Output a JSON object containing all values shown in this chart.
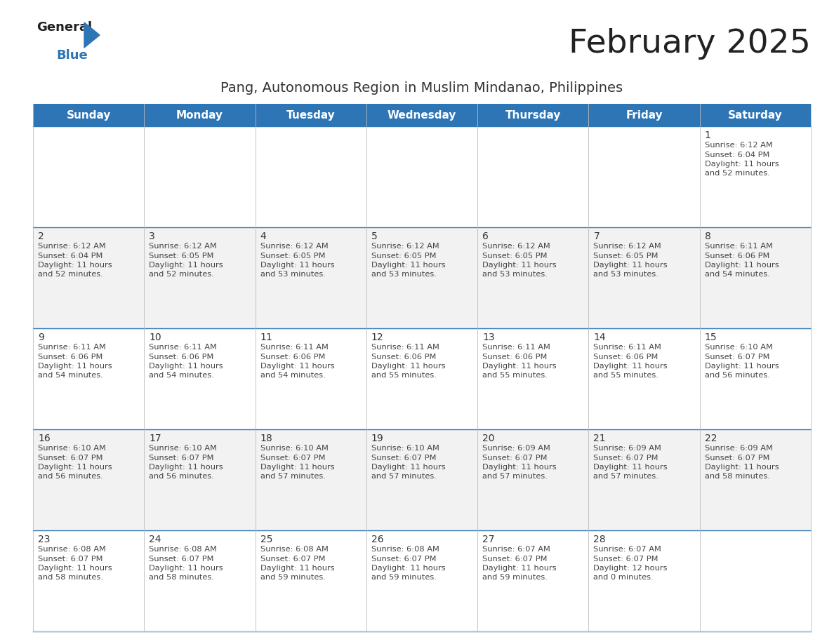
{
  "title": "February 2025",
  "subtitle": "Pang, Autonomous Region in Muslim Mindanao, Philippines",
  "header_bg_color": "#2E75B6",
  "header_text_color": "#FFFFFF",
  "weekdays": [
    "Sunday",
    "Monday",
    "Tuesday",
    "Wednesday",
    "Thursday",
    "Friday",
    "Saturday"
  ],
  "row_bg_white": "#FFFFFF",
  "row_bg_gray": "#F2F2F2",
  "cell_text_color": "#444444",
  "day_num_color": "#333333",
  "grid_line_color": "#AAAAAA",
  "row_divider_color": "#2E75B6",
  "calendar": [
    [
      {
        "day": null
      },
      {
        "day": null
      },
      {
        "day": null
      },
      {
        "day": null
      },
      {
        "day": null
      },
      {
        "day": null
      },
      {
        "day": 1,
        "sunrise": "6:12 AM",
        "sunset": "6:04 PM",
        "daylight_hours": 11,
        "daylight_minutes": 52
      }
    ],
    [
      {
        "day": 2,
        "sunrise": "6:12 AM",
        "sunset": "6:04 PM",
        "daylight_hours": 11,
        "daylight_minutes": 52
      },
      {
        "day": 3,
        "sunrise": "6:12 AM",
        "sunset": "6:05 PM",
        "daylight_hours": 11,
        "daylight_minutes": 52
      },
      {
        "day": 4,
        "sunrise": "6:12 AM",
        "sunset": "6:05 PM",
        "daylight_hours": 11,
        "daylight_minutes": 53
      },
      {
        "day": 5,
        "sunrise": "6:12 AM",
        "sunset": "6:05 PM",
        "daylight_hours": 11,
        "daylight_minutes": 53
      },
      {
        "day": 6,
        "sunrise": "6:12 AM",
        "sunset": "6:05 PM",
        "daylight_hours": 11,
        "daylight_minutes": 53
      },
      {
        "day": 7,
        "sunrise": "6:12 AM",
        "sunset": "6:05 PM",
        "daylight_hours": 11,
        "daylight_minutes": 53
      },
      {
        "day": 8,
        "sunrise": "6:11 AM",
        "sunset": "6:06 PM",
        "daylight_hours": 11,
        "daylight_minutes": 54
      }
    ],
    [
      {
        "day": 9,
        "sunrise": "6:11 AM",
        "sunset": "6:06 PM",
        "daylight_hours": 11,
        "daylight_minutes": 54
      },
      {
        "day": 10,
        "sunrise": "6:11 AM",
        "sunset": "6:06 PM",
        "daylight_hours": 11,
        "daylight_minutes": 54
      },
      {
        "day": 11,
        "sunrise": "6:11 AM",
        "sunset": "6:06 PM",
        "daylight_hours": 11,
        "daylight_minutes": 54
      },
      {
        "day": 12,
        "sunrise": "6:11 AM",
        "sunset": "6:06 PM",
        "daylight_hours": 11,
        "daylight_minutes": 55
      },
      {
        "day": 13,
        "sunrise": "6:11 AM",
        "sunset": "6:06 PM",
        "daylight_hours": 11,
        "daylight_minutes": 55
      },
      {
        "day": 14,
        "sunrise": "6:11 AM",
        "sunset": "6:06 PM",
        "daylight_hours": 11,
        "daylight_minutes": 55
      },
      {
        "day": 15,
        "sunrise": "6:10 AM",
        "sunset": "6:07 PM",
        "daylight_hours": 11,
        "daylight_minutes": 56
      }
    ],
    [
      {
        "day": 16,
        "sunrise": "6:10 AM",
        "sunset": "6:07 PM",
        "daylight_hours": 11,
        "daylight_minutes": 56
      },
      {
        "day": 17,
        "sunrise": "6:10 AM",
        "sunset": "6:07 PM",
        "daylight_hours": 11,
        "daylight_minutes": 56
      },
      {
        "day": 18,
        "sunrise": "6:10 AM",
        "sunset": "6:07 PM",
        "daylight_hours": 11,
        "daylight_minutes": 57
      },
      {
        "day": 19,
        "sunrise": "6:10 AM",
        "sunset": "6:07 PM",
        "daylight_hours": 11,
        "daylight_minutes": 57
      },
      {
        "day": 20,
        "sunrise": "6:09 AM",
        "sunset": "6:07 PM",
        "daylight_hours": 11,
        "daylight_minutes": 57
      },
      {
        "day": 21,
        "sunrise": "6:09 AM",
        "sunset": "6:07 PM",
        "daylight_hours": 11,
        "daylight_minutes": 57
      },
      {
        "day": 22,
        "sunrise": "6:09 AM",
        "sunset": "6:07 PM",
        "daylight_hours": 11,
        "daylight_minutes": 58
      }
    ],
    [
      {
        "day": 23,
        "sunrise": "6:08 AM",
        "sunset": "6:07 PM",
        "daylight_hours": 11,
        "daylight_minutes": 58
      },
      {
        "day": 24,
        "sunrise": "6:08 AM",
        "sunset": "6:07 PM",
        "daylight_hours": 11,
        "daylight_minutes": 58
      },
      {
        "day": 25,
        "sunrise": "6:08 AM",
        "sunset": "6:07 PM",
        "daylight_hours": 11,
        "daylight_minutes": 59
      },
      {
        "day": 26,
        "sunrise": "6:08 AM",
        "sunset": "6:07 PM",
        "daylight_hours": 11,
        "daylight_minutes": 59
      },
      {
        "day": 27,
        "sunrise": "6:07 AM",
        "sunset": "6:07 PM",
        "daylight_hours": 11,
        "daylight_minutes": 59
      },
      {
        "day": 28,
        "sunrise": "6:07 AM",
        "sunset": "6:07 PM",
        "daylight_hours": 12,
        "daylight_minutes": 0
      },
      {
        "day": null
      }
    ]
  ],
  "title_fontsize": 34,
  "subtitle_fontsize": 14,
  "header_fontsize": 11,
  "day_num_fontsize": 10,
  "cell_text_fontsize": 8.2,
  "logo_general_fontsize": 13,
  "logo_blue_fontsize": 13
}
